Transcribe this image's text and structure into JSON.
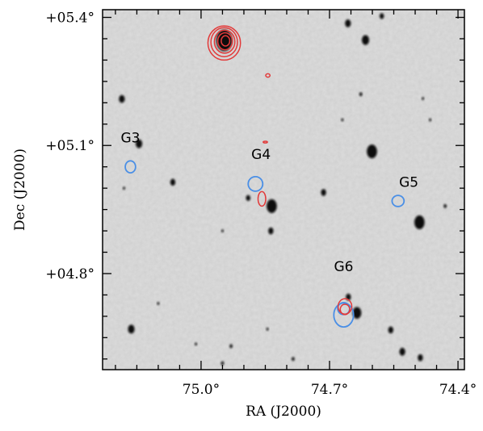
{
  "chart_data": {
    "type": "scatter",
    "xlabel": "RA (J2000)",
    "ylabel": "Dec (J2000)",
    "xlim": [
      75.23,
      74.385
    ],
    "ylim": [
      4.575,
      5.418
    ],
    "x_ticks": [
      {
        "value": 75.0,
        "label": "75.0°"
      },
      {
        "value": 74.7,
        "label": "74.7°"
      },
      {
        "value": 74.4,
        "label": "74.4°"
      }
    ],
    "y_ticks": [
      {
        "value": 5.4,
        "label": "+05.4°"
      },
      {
        "value": 5.1,
        "label": "+05.1°"
      },
      {
        "value": 4.8,
        "label": "+04.8°"
      }
    ],
    "x_minor_step": 0.05,
    "y_minor_step": 0.05,
    "grid": false,
    "background": "greyscale optical image with dark stellar sources",
    "annotations": [
      {
        "text": "G3",
        "ra": 75.165,
        "dec": 5.107
      },
      {
        "text": "G4",
        "ra": 74.86,
        "dec": 5.068
      },
      {
        "text": "G5",
        "ra": 74.515,
        "dec": 5.003
      },
      {
        "text": "G6",
        "ra": 74.667,
        "dec": 4.806
      }
    ],
    "blue_contours": [
      {
        "ra": 75.165,
        "dec": 5.05,
        "rx": 0.012,
        "ry": 0.014
      },
      {
        "ra": 74.873,
        "dec": 5.01,
        "rx": 0.017,
        "ry": 0.017
      },
      {
        "ra": 74.54,
        "dec": 4.97,
        "rx": 0.014,
        "ry": 0.013
      },
      {
        "ra": 74.667,
        "dec": 4.703,
        "rx": 0.023,
        "ry": 0.028
      },
      {
        "ra": 74.667,
        "dec": 4.718,
        "rx": 0.014,
        "ry": 0.014
      }
    ],
    "red_contours": [
      {
        "ra": 74.946,
        "dec": 5.34,
        "rx": 0.038,
        "ry": 0.04
      },
      {
        "ra": 74.946,
        "dec": 5.342,
        "rx": 0.031,
        "ry": 0.034
      },
      {
        "ra": 74.945,
        "dec": 5.343,
        "rx": 0.024,
        "ry": 0.027
      },
      {
        "ra": 74.944,
        "dec": 5.344,
        "rx": 0.017,
        "ry": 0.02
      },
      {
        "ra": 74.943,
        "dec": 5.345,
        "rx": 0.01,
        "ry": 0.012
      },
      {
        "ra": 74.844,
        "dec": 5.264,
        "rx": 0.005,
        "ry": 0.004
      },
      {
        "ra": 74.85,
        "dec": 5.108,
        "rx": 0.005,
        "ry": 0.002
      },
      {
        "ra": 74.858,
        "dec": 4.975,
        "rx": 0.009,
        "ry": 0.017
      },
      {
        "ra": 74.664,
        "dec": 4.723,
        "rx": 0.016,
        "ry": 0.018
      },
      {
        "ra": 74.664,
        "dec": 4.716,
        "rx": 0.011,
        "ry": 0.012
      }
    ],
    "sources": [
      {
        "ra": 74.946,
        "dec": 5.346,
        "r": 0.022
      },
      {
        "ra": 74.657,
        "dec": 5.386,
        "r": 0.008
      },
      {
        "ra": 74.616,
        "dec": 5.347,
        "r": 0.01
      },
      {
        "ra": 74.578,
        "dec": 5.403,
        "r": 0.006
      },
      {
        "ra": 75.185,
        "dec": 5.209,
        "r": 0.008
      },
      {
        "ra": 74.627,
        "dec": 5.22,
        "r": 0.004
      },
      {
        "ra": 75.145,
        "dec": 5.104,
        "r": 0.009
      },
      {
        "ra": 74.601,
        "dec": 5.086,
        "r": 0.014
      },
      {
        "ra": 75.066,
        "dec": 5.014,
        "r": 0.007
      },
      {
        "ra": 74.89,
        "dec": 4.977,
        "r": 0.006
      },
      {
        "ra": 74.835,
        "dec": 4.958,
        "r": 0.014
      },
      {
        "ra": 74.837,
        "dec": 4.9,
        "r": 0.007
      },
      {
        "ra": 74.714,
        "dec": 4.99,
        "r": 0.007
      },
      {
        "ra": 74.49,
        "dec": 4.92,
        "r": 0.014
      },
      {
        "ra": 74.43,
        "dec": 4.958,
        "r": 0.004
      },
      {
        "ra": 74.656,
        "dec": 4.745,
        "r": 0.007
      },
      {
        "ra": 74.636,
        "dec": 4.708,
        "r": 0.012
      },
      {
        "ra": 75.163,
        "dec": 4.67,
        "r": 0.009
      },
      {
        "ra": 74.557,
        "dec": 4.668,
        "r": 0.007
      },
      {
        "ra": 74.53,
        "dec": 4.617,
        "r": 0.008
      },
      {
        "ra": 74.488,
        "dec": 4.603,
        "r": 0.007
      },
      {
        "ra": 74.826,
        "dec": 4.56,
        "r": 0.006
      },
      {
        "ra": 74.95,
        "dec": 4.59,
        "r": 0.004
      },
      {
        "ra": 74.785,
        "dec": 4.6,
        "r": 0.004
      },
      {
        "ra": 74.93,
        "dec": 4.63,
        "r": 0.004
      },
      {
        "ra": 74.845,
        "dec": 4.67,
        "r": 0.003
      },
      {
        "ra": 75.1,
        "dec": 4.73,
        "r": 0.003
      },
      {
        "ra": 74.95,
        "dec": 4.9,
        "r": 0.003
      },
      {
        "ra": 75.18,
        "dec": 5.0,
        "r": 0.003
      },
      {
        "ra": 74.465,
        "dec": 5.16,
        "r": 0.003
      },
      {
        "ra": 74.482,
        "dec": 5.21,
        "r": 0.003
      },
      {
        "ra": 74.67,
        "dec": 5.16,
        "r": 0.003
      },
      {
        "ra": 75.012,
        "dec": 4.635,
        "r": 0.003
      }
    ]
  }
}
